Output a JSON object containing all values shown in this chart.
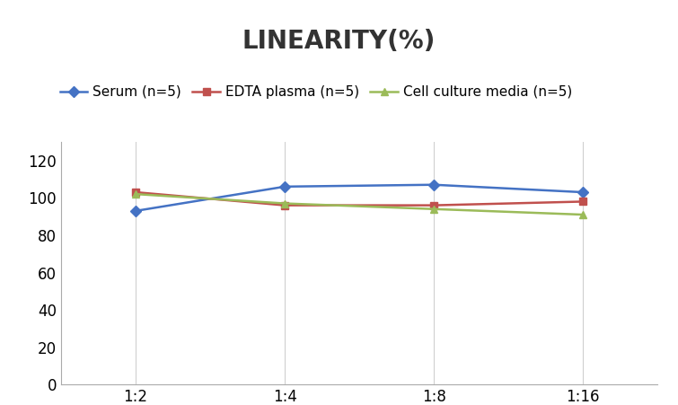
{
  "title": "LINEARITY(%)",
  "x_labels": [
    "1:2",
    "1:4",
    "1:8",
    "1:16"
  ],
  "x_positions": [
    0,
    1,
    2,
    3
  ],
  "series": [
    {
      "label": "Serum (n=5)",
      "values": [
        93,
        106,
        107,
        103
      ],
      "color": "#4472C4",
      "marker": "D",
      "markersize": 6
    },
    {
      "label": "EDTA plasma (n=5)",
      "values": [
        103,
        96,
        96,
        98
      ],
      "color": "#C0504D",
      "marker": "s",
      "markersize": 6
    },
    {
      "label": "Cell culture media (n=5)",
      "values": [
        102,
        97,
        94,
        91
      ],
      "color": "#9BBB59",
      "marker": "^",
      "markersize": 6
    }
  ],
  "ylim": [
    0,
    130
  ],
  "yticks": [
    0,
    20,
    40,
    60,
    80,
    100,
    120
  ],
  "background_color": "#FFFFFF",
  "title_fontsize": 20,
  "legend_fontsize": 11,
  "tick_fontsize": 12,
  "grid_color": "#D0D0D0",
  "spine_color": "#AAAAAA"
}
